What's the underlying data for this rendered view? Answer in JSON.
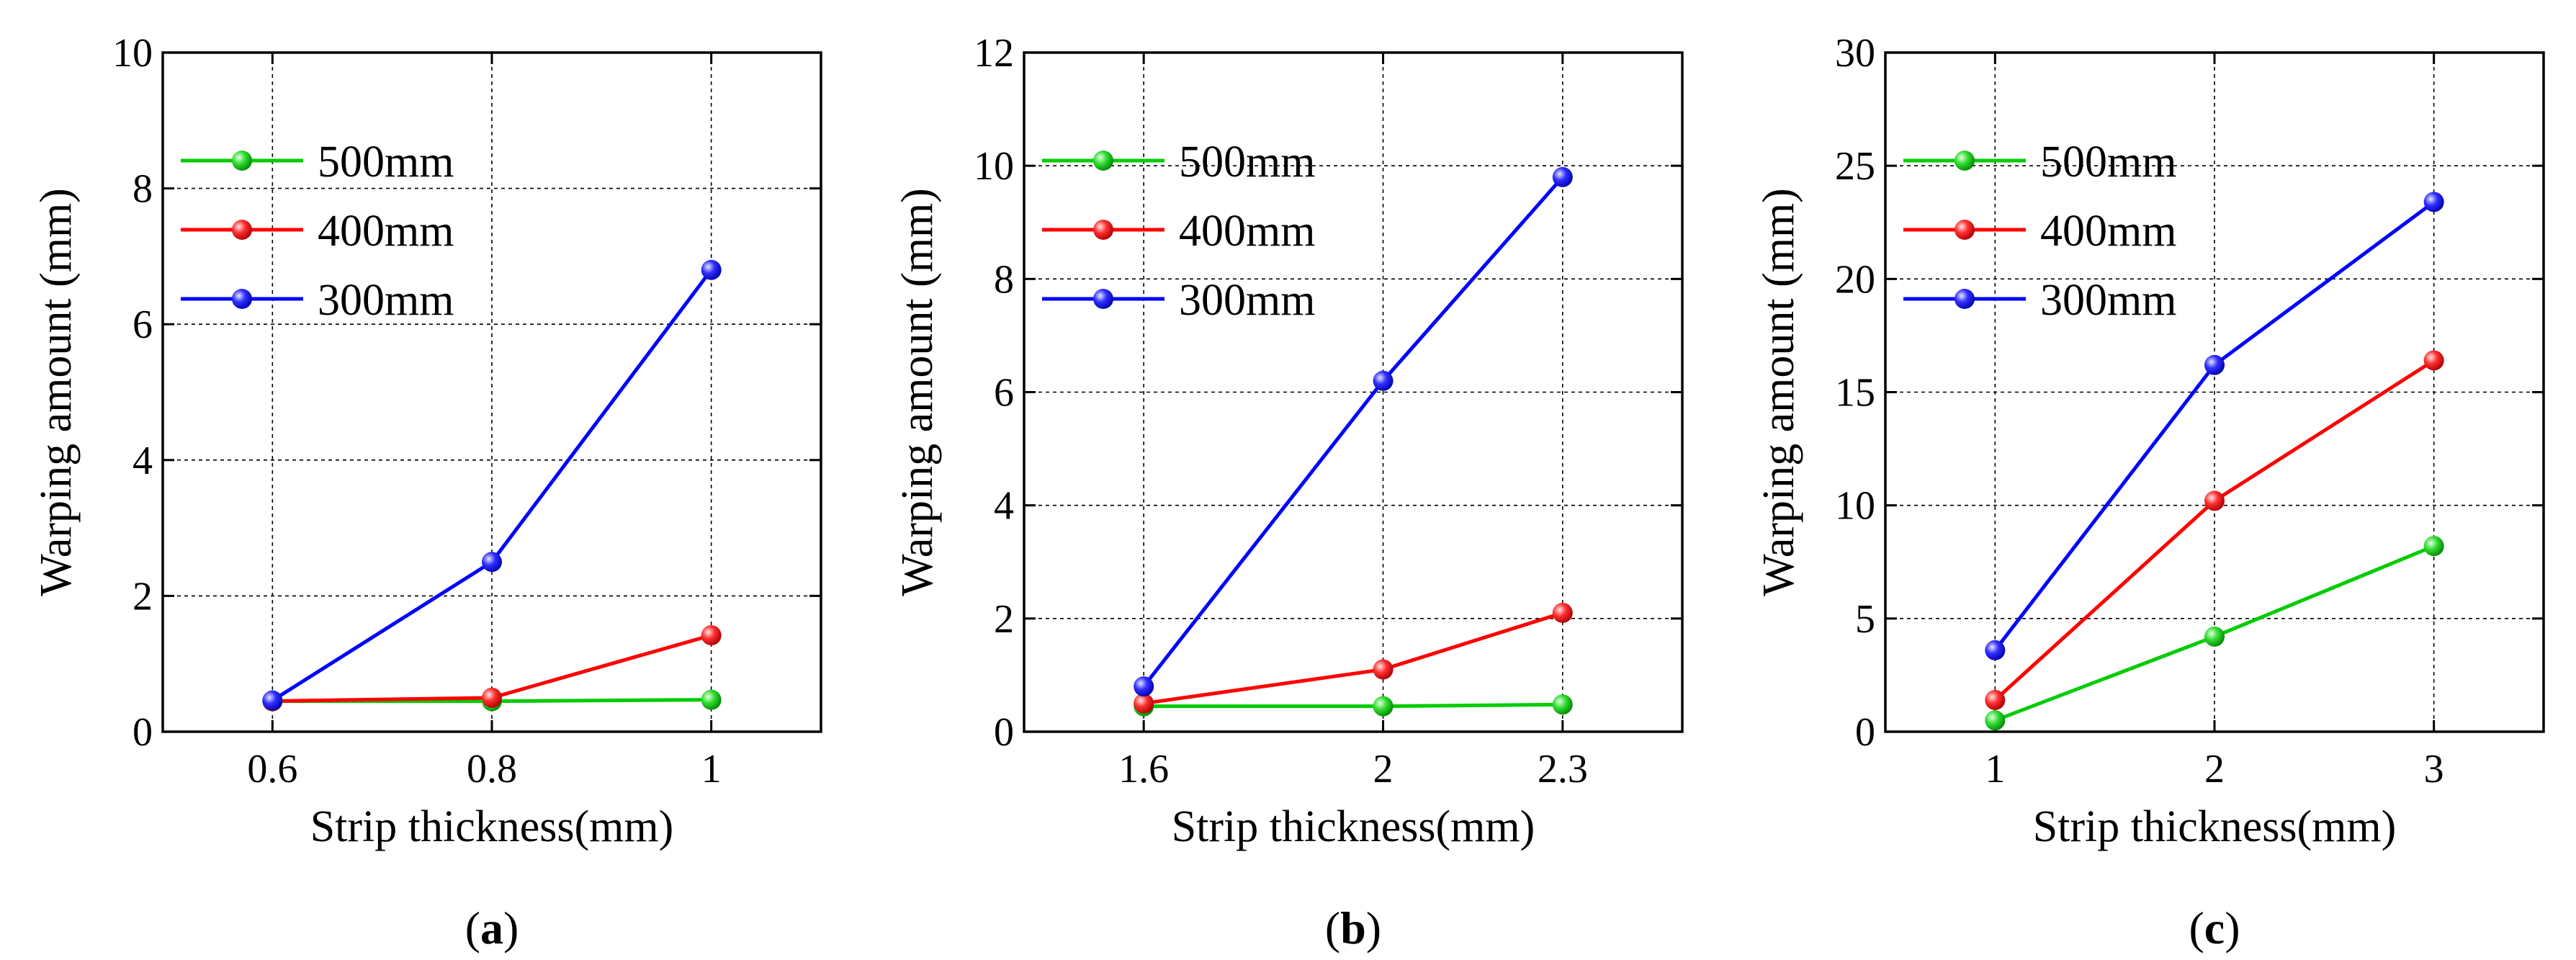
{
  "chart_data": [
    {
      "type": "line",
      "caption_letter": "a",
      "xlabel": "Strip thickness(mm)",
      "ylabel": "Warping amount (mm)",
      "x": [
        0.6,
        0.8,
        1
      ],
      "x_tick_labels": [
        "0.6",
        "0.8",
        "1"
      ],
      "xlim": [
        0.5,
        1.1
      ],
      "ylim": [
        0,
        10
      ],
      "y_ticks": [
        0,
        2,
        4,
        6,
        8,
        10
      ],
      "grid": true,
      "legend": "top-left",
      "series": [
        {
          "name": "500mm",
          "color": "#00cc00",
          "values": [
            0.45,
            0.45,
            0.47
          ]
        },
        {
          "name": "400mm",
          "color": "#ff0000",
          "values": [
            0.45,
            0.5,
            1.42
          ]
        },
        {
          "name": "300mm",
          "color": "#0000ff",
          "values": [
            0.46,
            2.5,
            6.8
          ]
        }
      ]
    },
    {
      "type": "line",
      "caption_letter": "b",
      "xlabel": "Strip thickness(mm)",
      "ylabel": "Warping amount (mm)",
      "x": [
        1.6,
        2,
        2.3
      ],
      "x_tick_labels": [
        "1.6",
        "2",
        "2.3"
      ],
      "xlim": [
        1.4,
        2.5
      ],
      "ylim": [
        0,
        12
      ],
      "y_ticks": [
        0,
        2,
        4,
        6,
        8,
        10,
        12
      ],
      "grid": true,
      "legend": "top-left",
      "series": [
        {
          "name": "500mm",
          "color": "#00cc00",
          "values": [
            0.45,
            0.45,
            0.48
          ]
        },
        {
          "name": "400mm",
          "color": "#ff0000",
          "values": [
            0.5,
            1.1,
            2.1
          ]
        },
        {
          "name": "300mm",
          "color": "#0000ff",
          "values": [
            0.8,
            6.2,
            9.8
          ]
        }
      ]
    },
    {
      "type": "line",
      "caption_letter": "c",
      "xlabel": "Strip thickness(mm)",
      "ylabel": "Warping amount (mm)",
      "x": [
        1,
        2,
        3
      ],
      "x_tick_labels": [
        "1",
        "2",
        "3"
      ],
      "xlim": [
        0.5,
        3.5
      ],
      "ylim": [
        0,
        30
      ],
      "y_ticks": [
        0,
        5,
        10,
        15,
        20,
        25,
        30
      ],
      "grid": true,
      "legend": "top-left",
      "series": [
        {
          "name": "500mm",
          "color": "#00cc00",
          "values": [
            0.5,
            4.2,
            8.2
          ]
        },
        {
          "name": "400mm",
          "color": "#ff0000",
          "values": [
            1.4,
            10.2,
            16.4
          ]
        },
        {
          "name": "300mm",
          "color": "#0000ff",
          "values": [
            3.6,
            16.2,
            23.4
          ]
        }
      ]
    }
  ]
}
